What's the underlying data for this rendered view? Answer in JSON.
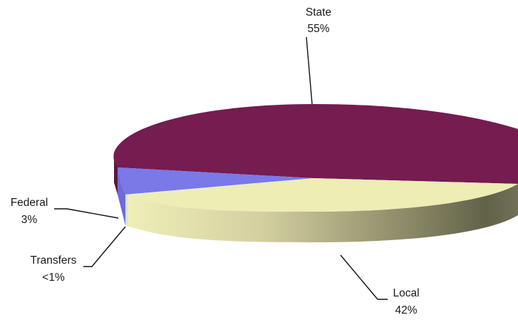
{
  "chart_data": {
    "type": "pie",
    "style": "3d",
    "title": "",
    "slices": [
      {
        "label": "State",
        "display": "55%",
        "value": 55,
        "color": "#751c51"
      },
      {
        "label": "Local",
        "display": "42%",
        "value": 42,
        "color": "#eeedb4"
      },
      {
        "label": "Transfers",
        "display": "<1%",
        "value": 0.5,
        "color": "#dfeff5"
      },
      {
        "label": "Federal",
        "display": "3%",
        "value": 2.5,
        "color": "#7b78e8"
      }
    ]
  }
}
